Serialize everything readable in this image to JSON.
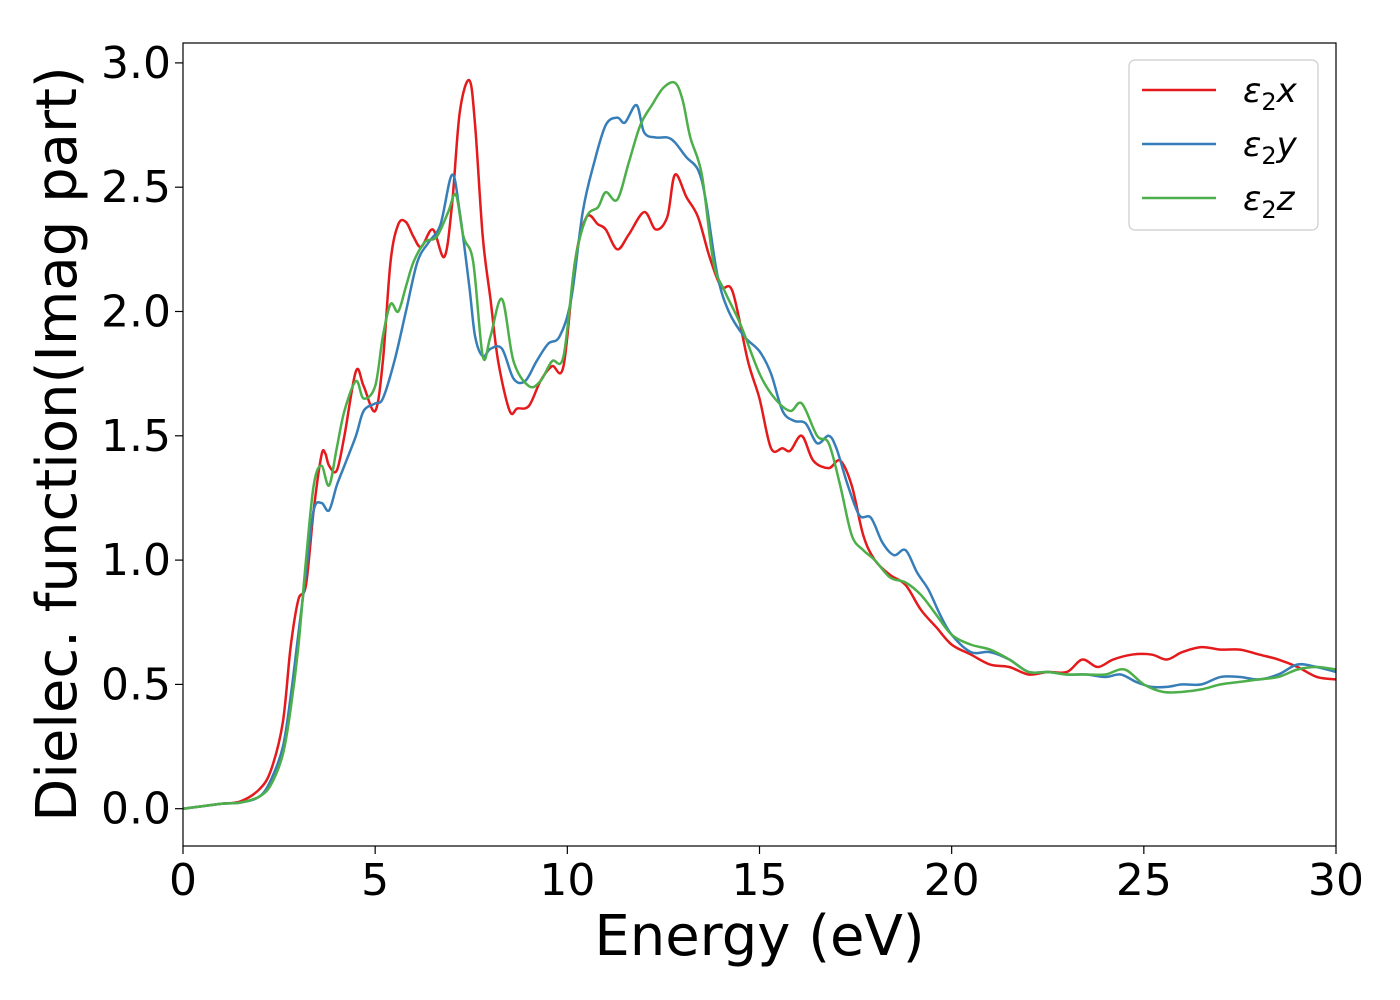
{
  "chart_data": {
    "type": "line",
    "title": "",
    "xlabel": "Energy (eV)",
    "ylabel": "Dielec. function(Imag part)",
    "xlim": [
      0,
      30
    ],
    "ylim": [
      -0.15,
      3.08
    ],
    "xticks": [
      0,
      5,
      10,
      15,
      20,
      25,
      30
    ],
    "xtick_labels": [
      "0",
      "5",
      "10",
      "15",
      "20",
      "25",
      "30"
    ],
    "yticks": [
      0.0,
      0.5,
      1.0,
      1.5,
      2.0,
      2.5,
      3.0
    ],
    "ytick_labels": [
      "0.0",
      "0.5",
      "1.0",
      "1.5",
      "2.0",
      "2.5",
      "3.0"
    ],
    "grid": false,
    "legend_position": "top-right",
    "series": [
      {
        "name": "ε₂x",
        "legend_base": "ε",
        "legend_sub": "2",
        "legend_suffix": "x",
        "color": "#e41a1c",
        "x": [
          0,
          0.5,
          1,
          1.5,
          2,
          2.3,
          2.6,
          2.8,
          3.0,
          3.2,
          3.4,
          3.6,
          3.7,
          3.8,
          4.0,
          4.2,
          4.5,
          4.7,
          5.0,
          5.2,
          5.4,
          5.6,
          5.8,
          6.0,
          6.2,
          6.5,
          6.8,
          7.0,
          7.2,
          7.45,
          7.6,
          7.8,
          8.0,
          8.2,
          8.5,
          8.7,
          9.0,
          9.3,
          9.6,
          9.9,
          10.2,
          10.5,
          10.8,
          11.0,
          11.3,
          11.6,
          12.0,
          12.3,
          12.6,
          12.8,
          13.1,
          13.4,
          13.7,
          14.0,
          14.3,
          14.7,
          15.0,
          15.3,
          15.6,
          15.8,
          16.1,
          16.4,
          16.8,
          17.1,
          17.4,
          17.7,
          18.0,
          18.4,
          18.8,
          19.2,
          19.6,
          20.0,
          20.5,
          21.0,
          21.5,
          22.0,
          22.5,
          23.0,
          23.4,
          23.8,
          24.2,
          24.7,
          25.2,
          25.6,
          26.0,
          26.5,
          27.0,
          27.5,
          28.0,
          28.5,
          29.0,
          29.5,
          30.0
        ],
        "y": [
          0.0,
          0.01,
          0.02,
          0.03,
          0.08,
          0.16,
          0.35,
          0.65,
          0.84,
          0.9,
          1.2,
          1.42,
          1.43,
          1.38,
          1.36,
          1.5,
          1.76,
          1.7,
          1.6,
          1.8,
          2.2,
          2.35,
          2.36,
          2.3,
          2.26,
          2.33,
          2.22,
          2.43,
          2.8,
          2.93,
          2.75,
          2.3,
          2.05,
          1.8,
          1.6,
          1.61,
          1.62,
          1.72,
          1.78,
          1.78,
          2.2,
          2.38,
          2.35,
          2.33,
          2.25,
          2.31,
          2.4,
          2.33,
          2.38,
          2.55,
          2.46,
          2.38,
          2.22,
          2.1,
          2.08,
          1.8,
          1.65,
          1.45,
          1.45,
          1.44,
          1.5,
          1.4,
          1.37,
          1.4,
          1.3,
          1.1,
          1.0,
          0.94,
          0.9,
          0.8,
          0.73,
          0.66,
          0.62,
          0.58,
          0.57,
          0.54,
          0.55,
          0.55,
          0.6,
          0.57,
          0.6,
          0.62,
          0.62,
          0.6,
          0.63,
          0.65,
          0.64,
          0.64,
          0.62,
          0.6,
          0.57,
          0.53,
          0.52
        ]
      },
      {
        "name": "ε₂y",
        "legend_base": "ε",
        "legend_sub": "2",
        "legend_suffix": "y",
        "color": "#377eb8",
        "x": [
          0,
          0.5,
          1,
          1.5,
          2,
          2.3,
          2.6,
          2.8,
          3.0,
          3.2,
          3.4,
          3.6,
          3.8,
          4.0,
          4.2,
          4.5,
          4.7,
          5.0,
          5.2,
          5.5,
          5.8,
          6.1,
          6.4,
          6.7,
          7.0,
          7.2,
          7.45,
          7.6,
          7.8,
          8.0,
          8.3,
          8.6,
          8.9,
          9.2,
          9.5,
          9.8,
          10.1,
          10.4,
          10.7,
          11.0,
          11.3,
          11.5,
          11.8,
          12.0,
          12.3,
          12.6,
          12.8,
          13.1,
          13.4,
          13.6,
          13.9,
          14.2,
          14.6,
          15.0,
          15.3,
          15.6,
          15.9,
          16.2,
          16.5,
          16.8,
          17.0,
          17.3,
          17.6,
          17.9,
          18.2,
          18.5,
          18.8,
          19.1,
          19.4,
          19.7,
          20.0,
          20.5,
          21.0,
          21.5,
          22.0,
          22.5,
          23.0,
          23.5,
          24.0,
          24.4,
          24.8,
          25.2,
          25.6,
          26.0,
          26.5,
          27.0,
          27.5,
          28.0,
          28.5,
          29.0,
          29.5,
          30.0
        ],
        "y": [
          0.0,
          0.01,
          0.02,
          0.025,
          0.05,
          0.12,
          0.25,
          0.45,
          0.7,
          0.95,
          1.2,
          1.23,
          1.2,
          1.3,
          1.38,
          1.5,
          1.6,
          1.63,
          1.65,
          1.8,
          2.0,
          2.2,
          2.28,
          2.35,
          2.55,
          2.4,
          2.1,
          1.9,
          1.82,
          1.85,
          1.85,
          1.73,
          1.72,
          1.8,
          1.87,
          1.9,
          2.05,
          2.4,
          2.6,
          2.75,
          2.78,
          2.76,
          2.83,
          2.72,
          2.7,
          2.7,
          2.68,
          2.62,
          2.57,
          2.45,
          2.15,
          2.0,
          1.9,
          1.84,
          1.75,
          1.6,
          1.56,
          1.55,
          1.47,
          1.5,
          1.45,
          1.3,
          1.18,
          1.17,
          1.07,
          1.02,
          1.04,
          0.95,
          0.88,
          0.78,
          0.7,
          0.63,
          0.63,
          0.6,
          0.55,
          0.55,
          0.54,
          0.54,
          0.53,
          0.54,
          0.51,
          0.49,
          0.49,
          0.5,
          0.5,
          0.53,
          0.53,
          0.52,
          0.54,
          0.58,
          0.57,
          0.55
        ]
      },
      {
        "name": "ε₂z",
        "legend_base": "ε",
        "legend_sub": "2",
        "legend_suffix": "z",
        "color": "#4daf4a",
        "x": [
          0,
          0.5,
          1,
          1.5,
          2,
          2.3,
          2.6,
          2.8,
          3.0,
          3.2,
          3.4,
          3.6,
          3.8,
          4.0,
          4.2,
          4.5,
          4.7,
          5.0,
          5.2,
          5.4,
          5.6,
          5.8,
          6.0,
          6.3,
          6.6,
          6.9,
          7.1,
          7.3,
          7.55,
          7.8,
          8.0,
          8.3,
          8.6,
          9.0,
          9.3,
          9.6,
          9.9,
          10.2,
          10.5,
          10.8,
          11.0,
          11.3,
          11.6,
          11.9,
          12.2,
          12.5,
          12.8,
          13.0,
          13.2,
          13.5,
          13.8,
          14.1,
          14.5,
          15.0,
          15.4,
          15.8,
          16.1,
          16.5,
          16.8,
          17.1,
          17.4,
          17.7,
          18.0,
          18.4,
          18.8,
          19.2,
          19.6,
          20.0,
          20.5,
          21.0,
          21.5,
          22.0,
          22.5,
          23.0,
          23.5,
          24.0,
          24.5,
          25.0,
          25.5,
          26.0,
          26.5,
          27.0,
          27.5,
          28.0,
          28.5,
          29.0,
          29.5,
          30.0
        ],
        "y": [
          0.0,
          0.01,
          0.02,
          0.025,
          0.05,
          0.1,
          0.22,
          0.4,
          0.65,
          1.0,
          1.3,
          1.38,
          1.3,
          1.45,
          1.6,
          1.72,
          1.65,
          1.7,
          1.9,
          2.03,
          2.0,
          2.1,
          2.2,
          2.28,
          2.3,
          2.4,
          2.47,
          2.3,
          2.2,
          1.82,
          1.9,
          2.05,
          1.8,
          1.7,
          1.72,
          1.8,
          1.82,
          2.2,
          2.38,
          2.42,
          2.48,
          2.45,
          2.6,
          2.75,
          2.83,
          2.9,
          2.92,
          2.85,
          2.7,
          2.55,
          2.2,
          2.08,
          1.95,
          1.75,
          1.65,
          1.6,
          1.63,
          1.5,
          1.47,
          1.3,
          1.1,
          1.04,
          1.0,
          0.93,
          0.91,
          0.86,
          0.78,
          0.7,
          0.66,
          0.64,
          0.6,
          0.55,
          0.55,
          0.54,
          0.54,
          0.54,
          0.56,
          0.5,
          0.47,
          0.47,
          0.48,
          0.5,
          0.51,
          0.52,
          0.53,
          0.56,
          0.57,
          0.56
        ]
      }
    ]
  }
}
